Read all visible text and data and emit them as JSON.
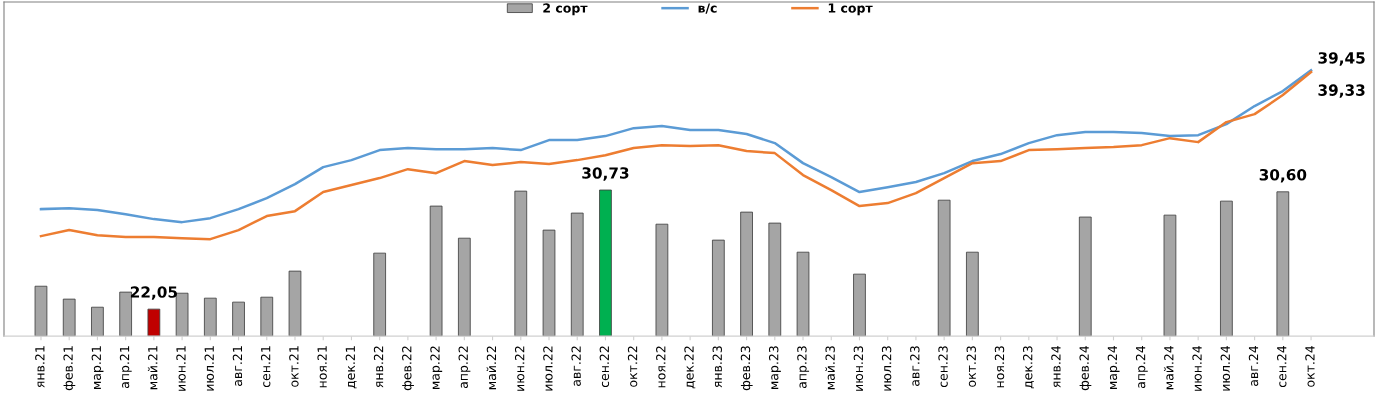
{
  "chart_data": {
    "type": "bar",
    "categories": [
      "янв.21",
      "фев.21",
      "мар.21",
      "апр.21",
      "май.21",
      "июн.21",
      "июл.21",
      "авг.21",
      "сен.21",
      "окт.21",
      "ноя.21",
      "дек.21",
      "янв.22",
      "фев.22",
      "мар.22",
      "апр.22",
      "май.22",
      "июн.22",
      "июл.22",
      "авг.22",
      "сен.22",
      "окт.22",
      "ноя.22",
      "дек.22",
      "янв.23",
      "фев.23",
      "мар.23",
      "апр.23",
      "май.23",
      "июн.23",
      "июл.23",
      "авг.23",
      "сен.23",
      "окт.23",
      "ноя.23",
      "дек.23",
      "янв.24",
      "фев.24",
      "мар.24",
      "апр.24",
      "май.24",
      "июн.24",
      "июл.24",
      "авг.24",
      "сен.24",
      "окт.24"
    ],
    "series": [
      {
        "name": "2 сорт",
        "color": "#a5a5a5",
        "colors": [
          "#a5a5a5",
          "#a5a5a5",
          "#a5a5a5",
          "#a5a5a5",
          "#c00000",
          "#a5a5a5",
          "#a5a5a5",
          "#a5a5a5",
          "#a5a5a5",
          "#a5a5a5",
          "#a5a5a5",
          "#a5a5a5",
          "#a5a5a5",
          "#a5a5a5",
          "#a5a5a5",
          "#a5a5a5",
          "#a5a5a5",
          "#a5a5a5",
          "#a5a5a5",
          "#a5a5a5",
          "#00b050",
          "#a5a5a5",
          "#a5a5a5",
          "#a5a5a5",
          "#a5a5a5",
          "#a5a5a5",
          "#a5a5a5",
          "#a5a5a5",
          "#a5a5a5",
          "#a5a5a5",
          "#a5a5a5",
          "#a5a5a5",
          "#a5a5a5",
          "#a5a5a5",
          "#a5a5a5",
          "#a5a5a5",
          "#a5a5a5",
          "#a5a5a5",
          "#a5a5a5",
          "#a5a5a5",
          "#a5a5a5",
          "#a5a5a5",
          "#a5a5a5",
          "#a5a5a5",
          "#a5a5a5",
          "#a5a5a5"
        ],
        "values": [
          23.72,
          22.78,
          22.19,
          23.29,
          22.05,
          23.21,
          22.85,
          22.56,
          22.92,
          24.82,
          null,
          null,
          26.13,
          null,
          29.56,
          27.22,
          null,
          30.65,
          27.81,
          29.05,
          30.73,
          null,
          28.24,
          null,
          27.08,
          29.12,
          28.32,
          26.2,
          null,
          24.6,
          null,
          null,
          29.99,
          26.2,
          null,
          null,
          null,
          28.76,
          null,
          null,
          28.9,
          null,
          29.92,
          null,
          30.6,
          null
        ],
        "value_labels": [
          null,
          null,
          null,
          null,
          "22,05",
          null,
          null,
          null,
          null,
          null,
          null,
          null,
          null,
          null,
          null,
          null,
          null,
          null,
          null,
          null,
          "30,73",
          null,
          null,
          null,
          null,
          null,
          null,
          null,
          null,
          null,
          null,
          null,
          null,
          null,
          null,
          null,
          null,
          null,
          null,
          null,
          null,
          null,
          null,
          null,
          "30,60",
          null
        ]
      },
      {
        "name": "в/с",
        "type": "line",
        "color": "#5b9bd5",
        "values": [
          29.34,
          29.41,
          29.27,
          28.97,
          28.61,
          28.39,
          28.68,
          29.34,
          30.14,
          31.16,
          32.4,
          32.91,
          33.64,
          33.79,
          33.71,
          33.71,
          33.79,
          33.64,
          34.37,
          34.37,
          34.66,
          35.24,
          35.39,
          35.1,
          35.1,
          34.81,
          34.15,
          32.69,
          31.67,
          30.58,
          30.94,
          31.31,
          31.96,
          32.84,
          33.35,
          34.15,
          34.73,
          34.95,
          34.95,
          34.88,
          34.66,
          34.73,
          35.53,
          36.85,
          37.94,
          39.45
        ],
        "value_labels": [
          null,
          null,
          null,
          null,
          null,
          null,
          null,
          null,
          null,
          null,
          null,
          null,
          null,
          null,
          null,
          null,
          null,
          null,
          null,
          null,
          null,
          null,
          null,
          null,
          null,
          null,
          null,
          null,
          null,
          null,
          null,
          null,
          null,
          null,
          null,
          null,
          null,
          null,
          null,
          null,
          null,
          null,
          null,
          null,
          null,
          "39,45"
        ]
      },
      {
        "name": "1 сорт",
        "type": "line",
        "color": "#ed7d31",
        "values": [
          27.37,
          27.81,
          27.44,
          27.3,
          27.3,
          27.22,
          27.15,
          27.81,
          28.83,
          29.19,
          30.58,
          31.09,
          31.6,
          32.25,
          31.96,
          32.84,
          32.55,
          32.77,
          32.62,
          32.91,
          33.27,
          33.79,
          34.0,
          33.93,
          34.0,
          33.57,
          33.42,
          31.82,
          30.72,
          29.56,
          29.78,
          30.5,
          31.6,
          32.69,
          32.84,
          33.64,
          33.71,
          33.79,
          33.86,
          34.0,
          34.51,
          34.22,
          35.68,
          36.26,
          37.65,
          39.33
        ],
        "value_labels": [
          null,
          null,
          null,
          null,
          null,
          null,
          null,
          null,
          null,
          null,
          null,
          null,
          null,
          null,
          null,
          null,
          null,
          null,
          null,
          null,
          null,
          null,
          null,
          null,
          null,
          null,
          null,
          null,
          null,
          null,
          null,
          null,
          null,
          null,
          null,
          null,
          null,
          null,
          null,
          null,
          null,
          null,
          null,
          null,
          null,
          "39,33"
        ]
      }
    ],
    "ylim": [
      20.08,
      44.43
    ],
    "tick_labels": "x",
    "legend": "top",
    "grid": false
  }
}
